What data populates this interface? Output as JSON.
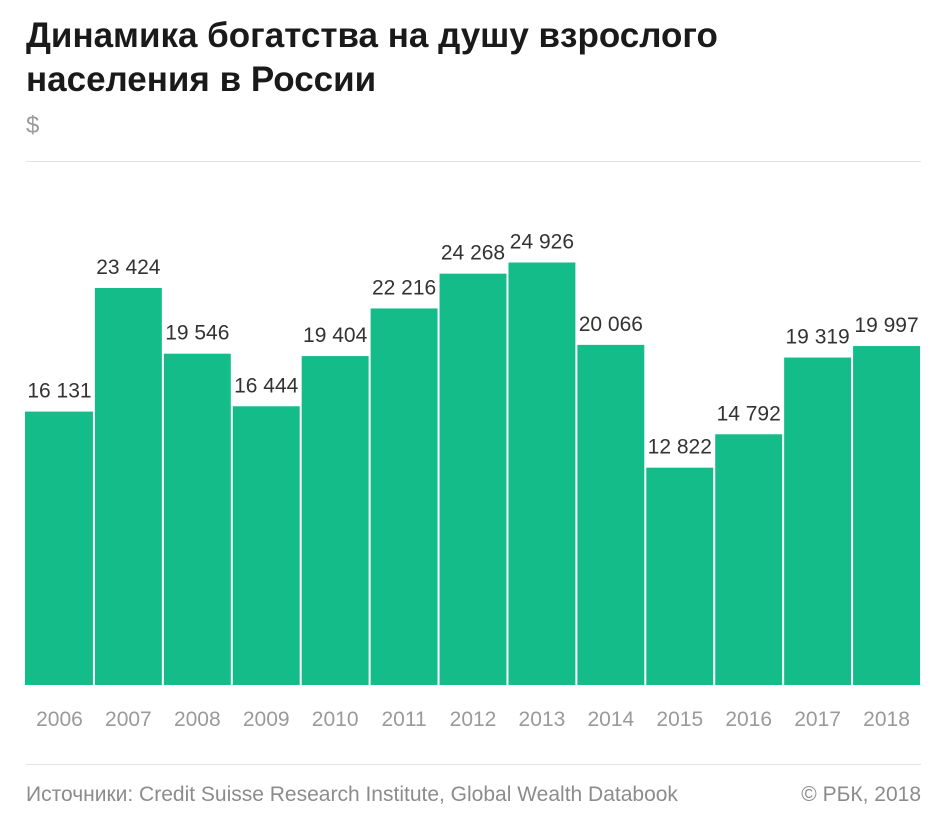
{
  "header": {
    "title": "Динамика богатства на душу взрослого населения в России",
    "unit": "$"
  },
  "footer": {
    "source": "Источники: Credit Suisse Research Institute, Global Wealth Databook",
    "copyright": "© РБК, 2018"
  },
  "colors": {
    "bar": "#13bc88",
    "label": "#333333",
    "axis_label": "#9a9a9a"
  },
  "chart_data": {
    "type": "bar",
    "title": "Динамика богатства на душу взрослого населения в России",
    "ylabel": "$",
    "categories": [
      "2006",
      "2007",
      "2008",
      "2009",
      "2010",
      "2011",
      "2012",
      "2013",
      "2014",
      "2015",
      "2016",
      "2017",
      "2018"
    ],
    "values": [
      16131,
      23424,
      19546,
      16444,
      19404,
      22216,
      24268,
      24926,
      20066,
      12822,
      14792,
      19319,
      19997
    ],
    "value_labels": [
      "16 131",
      "23 424",
      "19 546",
      "16 444",
      "19 404",
      "22 216",
      "24 268",
      "24 926",
      "20 066",
      "12 822",
      "14 792",
      "19 319",
      "19 997"
    ],
    "ylim": [
      0,
      28000
    ],
    "grid": false,
    "legend": "none"
  }
}
